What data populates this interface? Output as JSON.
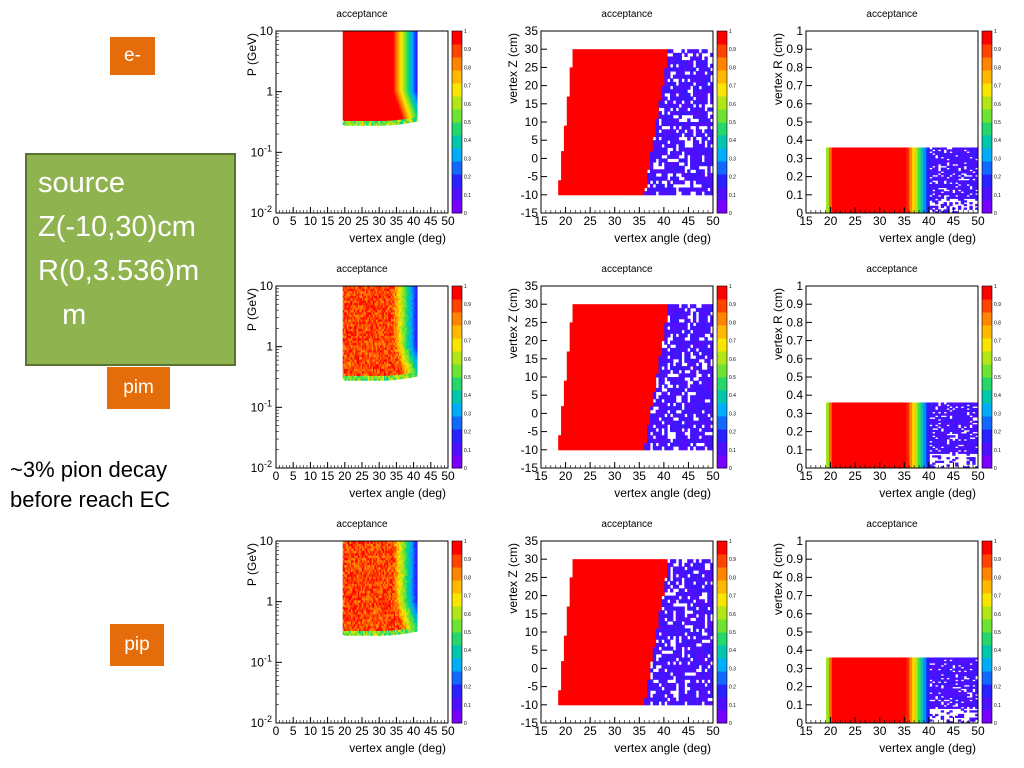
{
  "labels": {
    "electron": "e-",
    "pim": "pim",
    "pip": "pip"
  },
  "source_box": {
    "line1": "source",
    "line2": "Z(-10,30)cm",
    "line3": "R(0,3.536)m",
    "line4": "   m"
  },
  "note": {
    "line1": "~3% pion decay",
    "line2": "before reach EC"
  },
  "colors": {
    "high": "#ff0000",
    "low": "#4b00ff",
    "tag": "#e46c0a",
    "box": "#8fb34e"
  },
  "chart_data": [
    {
      "type": "heatmap",
      "title": "acceptance",
      "xlabel": "vertex angle (deg)",
      "ylabel": "P (GeV)",
      "particle": "e-",
      "xlim": [
        0,
        50
      ],
      "ylim": [
        0.01,
        10
      ],
      "ylog": true,
      "zlim": [
        0,
        1
      ],
      "colorbar_ticks": [
        "0",
        "0.1",
        "0.2",
        "0.3",
        "0.4",
        "0.5",
        "0.6",
        "0.7",
        "0.8",
        "0.9",
        "1"
      ],
      "x_ticks": [
        "0",
        "5",
        "10",
        "15",
        "20",
        "25",
        "30",
        "35",
        "40",
        "45",
        "50"
      ],
      "y_ticks": [
        "10^-2",
        "10^-1",
        "1",
        "10"
      ],
      "kind": "p"
    },
    {
      "type": "heatmap",
      "title": "acceptance",
      "xlabel": "vertex angle (deg)",
      "ylabel": "vertex Z (cm)",
      "particle": "e-",
      "xlim": [
        15,
        50
      ],
      "ylim": [
        -15,
        35
      ],
      "zlim": [
        0,
        1
      ],
      "colorbar_ticks": [
        "0",
        "0.1",
        "0.2",
        "0.3",
        "0.4",
        "0.5",
        "0.6",
        "0.7",
        "0.8",
        "0.9",
        "1"
      ],
      "x_ticks": [
        "15",
        "20",
        "25",
        "30",
        "35",
        "40",
        "45",
        "50"
      ],
      "y_ticks": [
        "-15",
        "-10",
        "-5",
        "0",
        "5",
        "10",
        "15",
        "20",
        "25",
        "30",
        "35"
      ],
      "kind": "z"
    },
    {
      "type": "heatmap",
      "title": "acceptance",
      "xlabel": "vertex angle (deg)",
      "ylabel": "vertex R (cm)",
      "particle": "e-",
      "xlim": [
        15,
        50
      ],
      "ylim": [
        0,
        1
      ],
      "zlim": [
        0,
        1
      ],
      "colorbar_ticks": [
        "0",
        "0.1",
        "0.2",
        "0.3",
        "0.4",
        "0.5",
        "0.6",
        "0.7",
        "0.8",
        "0.9",
        "1"
      ],
      "x_ticks": [
        "15",
        "20",
        "25",
        "30",
        "35",
        "40",
        "45",
        "50"
      ],
      "y_ticks": [
        "0",
        "0.1",
        "0.2",
        "0.3",
        "0.4",
        "0.5",
        "0.6",
        "0.7",
        "0.8",
        "0.9",
        "1"
      ],
      "kind": "r"
    },
    {
      "type": "heatmap",
      "title": "acceptance",
      "xlabel": "vertex angle (deg)",
      "ylabel": "P (GeV)",
      "particle": "pim",
      "xlim": [
        0,
        50
      ],
      "ylim": [
        0.01,
        10
      ],
      "ylog": true,
      "zlim": [
        0,
        1
      ],
      "colorbar_ticks": [
        "0",
        "0.1",
        "0.2",
        "0.3",
        "0.4",
        "0.5",
        "0.6",
        "0.7",
        "0.8",
        "0.9",
        "1"
      ],
      "x_ticks": [
        "0",
        "5",
        "10",
        "15",
        "20",
        "25",
        "30",
        "35",
        "40",
        "45",
        "50"
      ],
      "y_ticks": [
        "10^-2",
        "10^-1",
        "1",
        "10"
      ],
      "kind": "p"
    },
    {
      "type": "heatmap",
      "title": "acceptance",
      "xlabel": "vertex angle (deg)",
      "ylabel": "vertex Z (cm)",
      "particle": "pim",
      "xlim": [
        15,
        50
      ],
      "ylim": [
        -15,
        35
      ],
      "zlim": [
        0,
        1
      ],
      "colorbar_ticks": [
        "0",
        "0.1",
        "0.2",
        "0.3",
        "0.4",
        "0.5",
        "0.6",
        "0.7",
        "0.8",
        "0.9",
        "1"
      ],
      "x_ticks": [
        "15",
        "20",
        "25",
        "30",
        "35",
        "40",
        "45",
        "50"
      ],
      "y_ticks": [
        "-15",
        "-10",
        "-5",
        "0",
        "5",
        "10",
        "15",
        "20",
        "25",
        "30",
        "35"
      ],
      "kind": "z"
    },
    {
      "type": "heatmap",
      "title": "acceptance",
      "xlabel": "vertex angle (deg)",
      "ylabel": "vertex R (cm)",
      "particle": "pim",
      "xlim": [
        15,
        50
      ],
      "ylim": [
        0,
        1
      ],
      "zlim": [
        0,
        1
      ],
      "colorbar_ticks": [
        "0",
        "0.1",
        "0.2",
        "0.3",
        "0.4",
        "0.5",
        "0.6",
        "0.7",
        "0.8",
        "0.9",
        "1"
      ],
      "x_ticks": [
        "15",
        "20",
        "25",
        "30",
        "35",
        "40",
        "45",
        "50"
      ],
      "y_ticks": [
        "0",
        "0.1",
        "0.2",
        "0.3",
        "0.4",
        "0.5",
        "0.6",
        "0.7",
        "0.8",
        "0.9",
        "1"
      ],
      "kind": "r"
    },
    {
      "type": "heatmap",
      "title": "acceptance",
      "xlabel": "vertex angle (deg)",
      "ylabel": "P (GeV)",
      "particle": "pip",
      "xlim": [
        0,
        50
      ],
      "ylim": [
        0.01,
        10
      ],
      "ylog": true,
      "zlim": [
        0,
        1
      ],
      "colorbar_ticks": [
        "0",
        "0.1",
        "0.2",
        "0.3",
        "0.4",
        "0.5",
        "0.6",
        "0.7",
        "0.8",
        "0.9",
        "1"
      ],
      "x_ticks": [
        "0",
        "5",
        "10",
        "15",
        "20",
        "25",
        "30",
        "35",
        "40",
        "45",
        "50"
      ],
      "y_ticks": [
        "10^-2",
        "10^-1",
        "1",
        "10"
      ],
      "kind": "p"
    },
    {
      "type": "heatmap",
      "title": "acceptance",
      "xlabel": "vertex angle (deg)",
      "ylabel": "vertex Z (cm)",
      "particle": "pip",
      "xlim": [
        15,
        50
      ],
      "ylim": [
        -15,
        35
      ],
      "zlim": [
        0,
        1
      ],
      "colorbar_ticks": [
        "0",
        "0.1",
        "0.2",
        "0.3",
        "0.4",
        "0.5",
        "0.6",
        "0.7",
        "0.8",
        "0.9",
        "1"
      ],
      "x_ticks": [
        "15",
        "20",
        "25",
        "30",
        "35",
        "40",
        "45",
        "50"
      ],
      "y_ticks": [
        "-15",
        "-10",
        "-5",
        "0",
        "5",
        "10",
        "15",
        "20",
        "25",
        "30",
        "35"
      ],
      "kind": "z"
    },
    {
      "type": "heatmap",
      "title": "acceptance",
      "xlabel": "vertex angle (deg)",
      "ylabel": "vertex R (cm)",
      "particle": "pip",
      "xlim": [
        15,
        50
      ],
      "ylim": [
        0,
        1
      ],
      "zlim": [
        0,
        1
      ],
      "colorbar_ticks": [
        "0",
        "0.1",
        "0.2",
        "0.3",
        "0.4",
        "0.5",
        "0.6",
        "0.7",
        "0.8",
        "0.9",
        "1"
      ],
      "x_ticks": [
        "15",
        "20",
        "25",
        "30",
        "35",
        "40",
        "45",
        "50"
      ],
      "y_ticks": [
        "0",
        "0.1",
        "0.2",
        "0.3",
        "0.4",
        "0.5",
        "0.6",
        "0.7",
        "0.8",
        "0.9",
        "1"
      ],
      "kind": "r"
    }
  ]
}
